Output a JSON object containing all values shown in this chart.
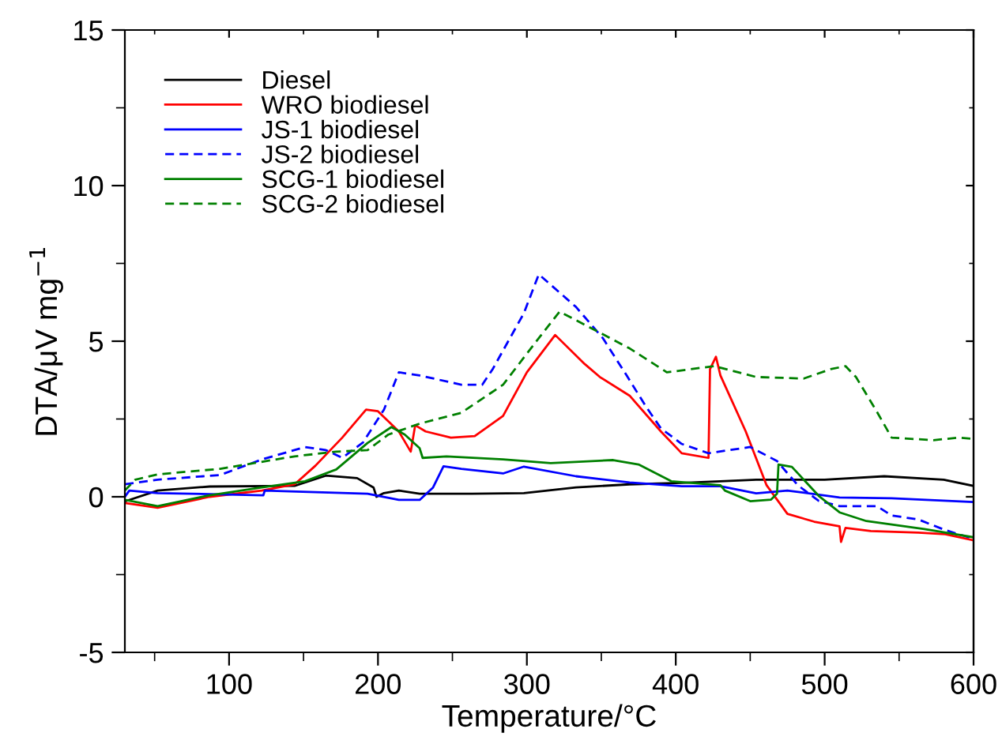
{
  "chart_data": {
    "type": "line",
    "xlabel": "Temperature/°C",
    "ylabel": "DTA/μV mg$^{−1}$",
    "xlim": [
      30,
      600
    ],
    "ylim": [
      -5,
      15
    ],
    "xticks": [
      100,
      200,
      300,
      400,
      500,
      600
    ],
    "yticks": [
      -5,
      0,
      5,
      10,
      15
    ],
    "legend": "top left",
    "grid": false,
    "marker": "none",
    "series": [
      {
        "name": "Diesel",
        "color": "#000000",
        "line_style": "solid",
        "x": [
          30,
          52,
          87,
          144,
          165,
          186,
          197,
          199,
          204,
          214,
          228,
          263,
          298,
          333,
          369,
          404,
          430,
          454,
          500,
          540,
          580,
          600
        ],
        "values": [
          -0.15,
          0.2,
          0.33,
          0.35,
          0.68,
          0.6,
          0.3,
          0.0,
          0.12,
          0.2,
          0.1,
          0.1,
          0.12,
          0.3,
          0.4,
          0.45,
          0.5,
          0.55,
          0.55,
          0.66,
          0.55,
          0.35
        ]
      },
      {
        "name": "WRO biodiesel",
        "color": "#ff0000",
        "line_style": "solid",
        "x": [
          30,
          52,
          87,
          122,
          144,
          158,
          176,
          192,
          200,
          214,
          222,
          225,
          232,
          249,
          265,
          284,
          300,
          319,
          339,
          349,
          369,
          390,
          404,
          422,
          423,
          427,
          430,
          447,
          461,
          475,
          493,
          510,
          511,
          514,
          531,
          563,
          581,
          600
        ],
        "values": [
          -0.2,
          -0.35,
          0.0,
          0.2,
          0.4,
          1.0,
          1.9,
          2.8,
          2.75,
          2.1,
          1.45,
          2.3,
          2.1,
          1.9,
          1.95,
          2.6,
          4.0,
          5.2,
          4.26,
          3.85,
          3.25,
          2.1,
          1.4,
          1.25,
          4.1,
          4.5,
          3.9,
          2.1,
          0.37,
          -0.55,
          -0.8,
          -0.95,
          -1.45,
          -1.0,
          -1.1,
          -1.15,
          -1.2,
          -1.4
        ]
      },
      {
        "name": "JS-1 biodiesel",
        "color": "#0000ff",
        "line_style": "solid",
        "x": [
          30,
          33,
          52,
          123,
          124,
          158,
          193,
          214,
          228,
          237,
          244,
          256,
          284,
          298,
          333,
          369,
          404,
          430,
          454,
          475,
          510,
          545,
          600
        ],
        "values": [
          0.0,
          0.2,
          0.12,
          0.05,
          0.2,
          0.15,
          0.1,
          -0.1,
          -0.1,
          0.3,
          0.98,
          0.9,
          0.75,
          0.97,
          0.66,
          0.46,
          0.34,
          0.34,
          0.11,
          0.2,
          -0.02,
          -0.05,
          -0.17
        ]
      },
      {
        "name": "JS-2 biodiesel",
        "color": "#0000ff",
        "line_style": "dashed",
        "x": [
          30,
          52,
          94,
          122,
          151,
          165,
          176,
          190,
          204,
          214,
          228,
          256,
          270,
          277,
          298,
          308,
          333,
          351,
          367,
          380,
          390,
          404,
          422,
          450,
          468,
          482,
          496,
          510,
          535,
          545,
          563,
          581,
          600
        ],
        "values": [
          0.4,
          0.55,
          0.7,
          1.2,
          1.6,
          1.5,
          1.25,
          1.75,
          2.8,
          4.0,
          3.9,
          3.6,
          3.6,
          4.1,
          5.9,
          7.15,
          6.1,
          5.1,
          3.9,
          2.9,
          2.2,
          1.7,
          1.4,
          1.6,
          1.15,
          0.37,
          -0.13,
          -0.3,
          -0.3,
          -0.6,
          -0.73,
          -1.07,
          -1.35
        ]
      },
      {
        "name": "SCG-1 biodiesel",
        "color": "#008000",
        "line_style": "solid",
        "x": [
          30,
          52,
          87,
          122,
          151,
          172,
          193,
          209,
          218,
          228,
          230,
          246,
          284,
          316,
          358,
          375,
          397,
          430,
          433,
          450,
          464,
          468,
          469,
          478,
          496,
          510,
          528,
          567,
          600
        ],
        "values": [
          -0.1,
          -0.3,
          0.05,
          0.3,
          0.5,
          0.88,
          1.73,
          2.24,
          2.0,
          1.56,
          1.25,
          1.3,
          1.2,
          1.08,
          1.18,
          1.04,
          0.5,
          0.37,
          0.2,
          -0.14,
          -0.09,
          0.1,
          1.04,
          0.96,
          0.03,
          -0.5,
          -0.78,
          -1.04,
          -1.3
        ]
      },
      {
        "name": "SCG-2 biodiesel",
        "color": "#008000",
        "line_style": "dashed",
        "x": [
          30,
          37,
          52,
          94,
          144,
          172,
          193,
          207,
          228,
          256,
          284,
          308,
          322,
          340,
          369,
          394,
          426,
          454,
          486,
          504,
          514,
          521,
          535,
          545,
          573,
          590,
          600
        ],
        "values": [
          0.2,
          0.55,
          0.72,
          0.9,
          1.3,
          1.45,
          1.5,
          2.0,
          2.35,
          2.7,
          3.6,
          5.1,
          5.95,
          5.5,
          4.77,
          4.0,
          4.2,
          3.85,
          3.8,
          4.1,
          4.2,
          3.85,
          2.74,
          1.9,
          1.82,
          1.9,
          1.86
        ]
      }
    ]
  }
}
